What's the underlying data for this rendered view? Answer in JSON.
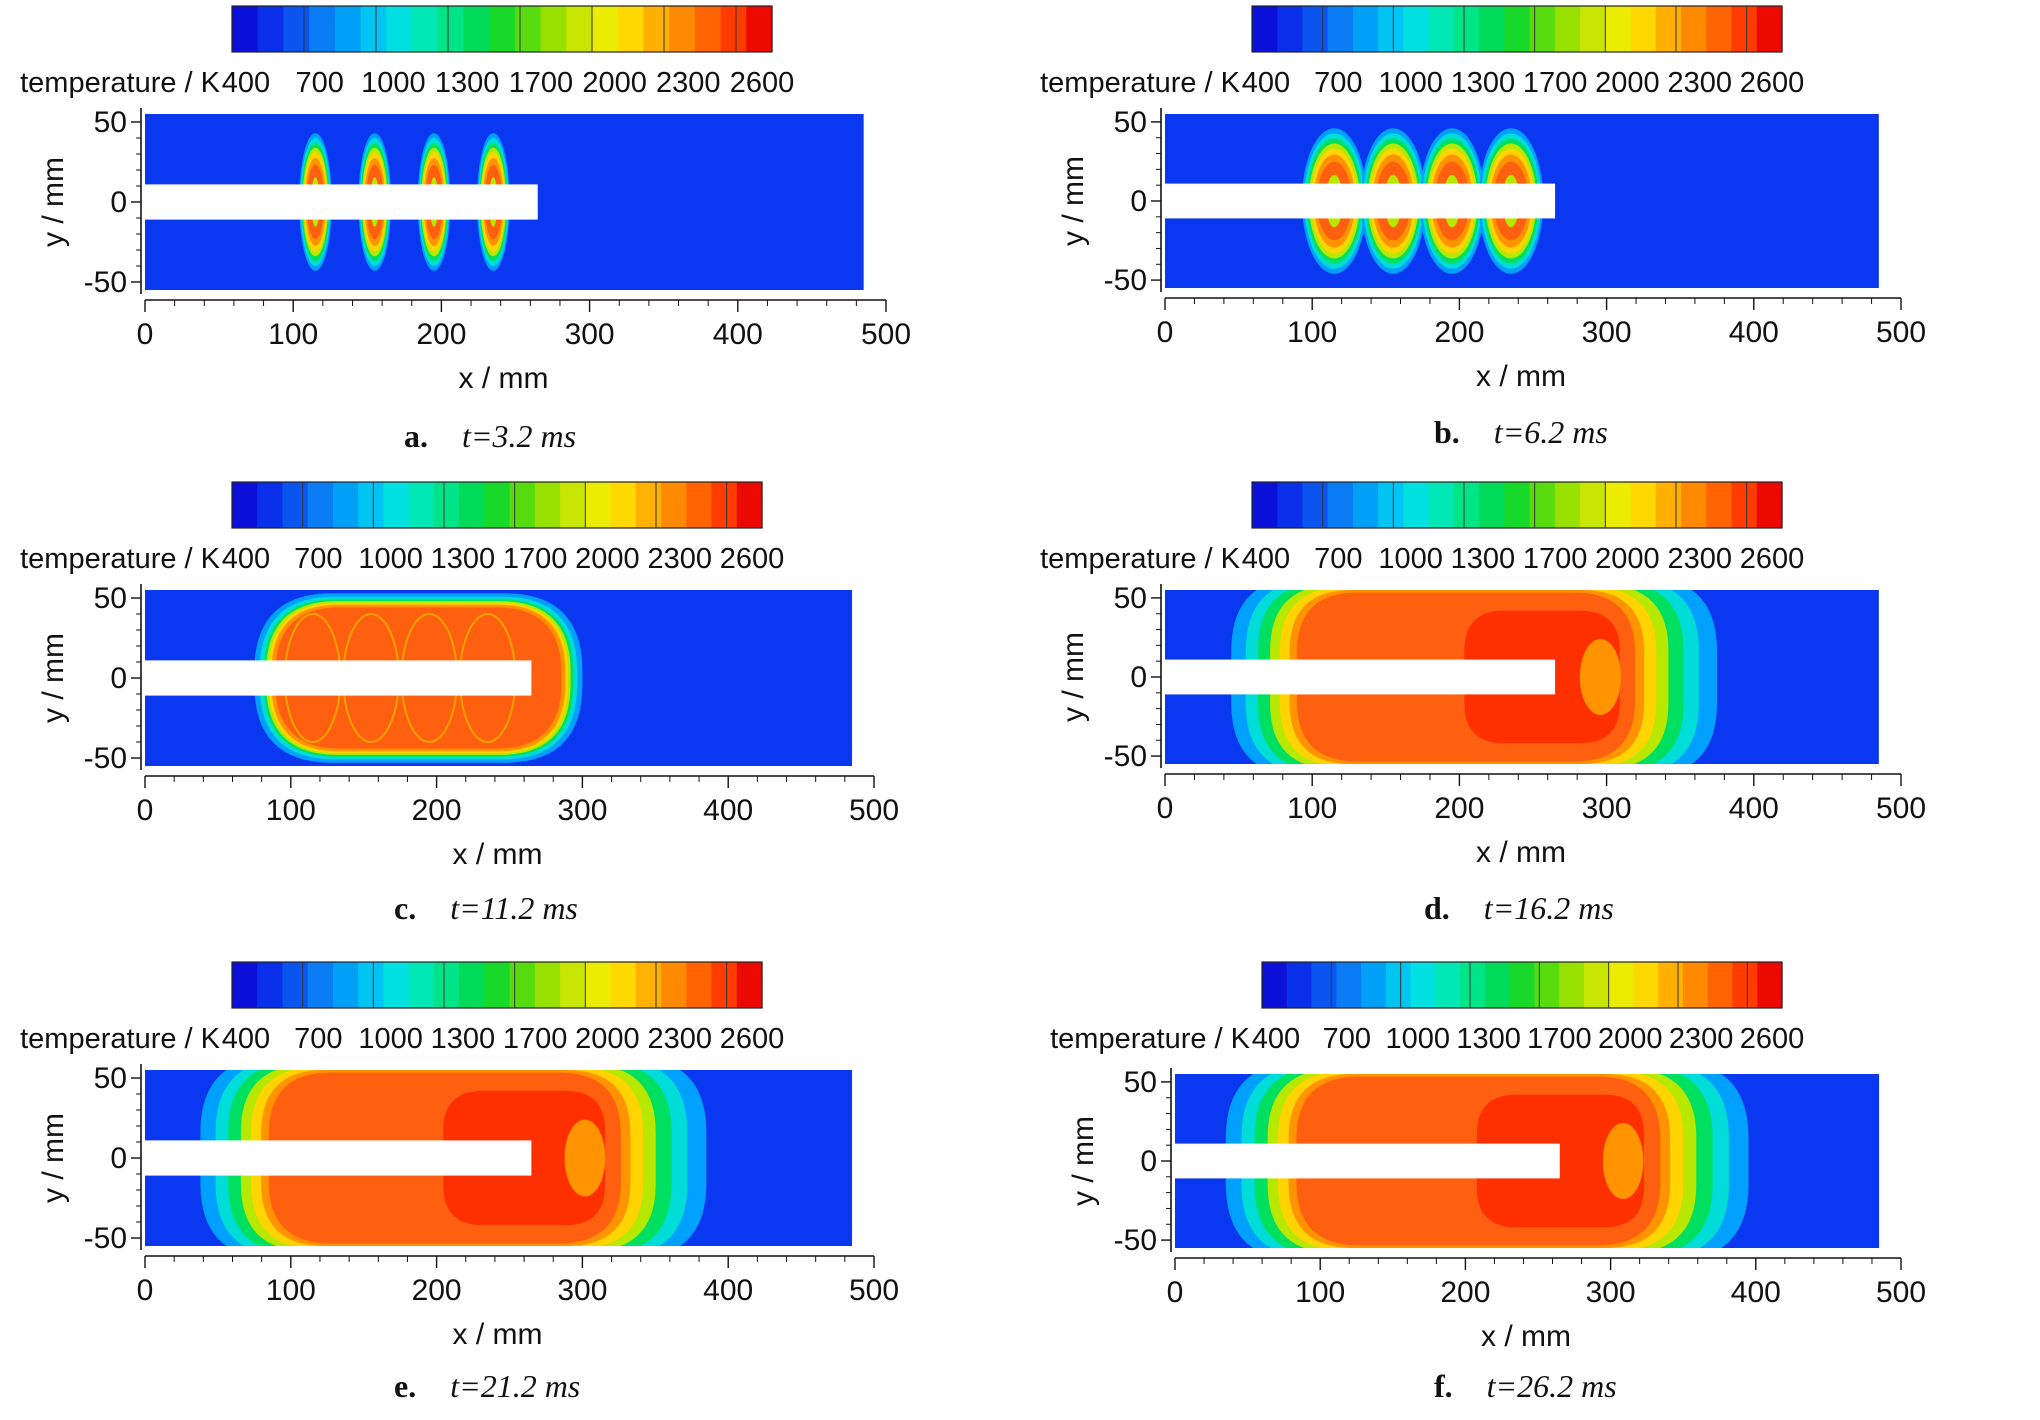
{
  "figure": {
    "colorbar": {
      "label": "temperature / K",
      "ticks": [
        "400",
        "700",
        "1000",
        "1300",
        "1700",
        "2000",
        "2300",
        "2600"
      ],
      "colors": [
        "#0a10d8",
        "#0a2fe8",
        "#0a55f0",
        "#0a7cf4",
        "#00a0f6",
        "#00c4f2",
        "#00e0e0",
        "#00e6b4",
        "#00e488",
        "#00dc5a",
        "#18d82a",
        "#58dc10",
        "#98e000",
        "#c8e600",
        "#ecec00",
        "#ffd800",
        "#ffb000",
        "#ff8a00",
        "#ff6400",
        "#ff3c00",
        "#ec0a00"
      ]
    },
    "field_colors": {
      "background": "#0a38f0",
      "ring": [
        "#00a0ff",
        "#00dcd8",
        "#00e060",
        "#b8e800",
        "#ffd400",
        "#ff9400"
      ],
      "core": "#ff6010",
      "hot": "#ff3000"
    }
  },
  "chart_data": [
    {
      "id": "a",
      "type": "heatmap",
      "caption_letter": "a.",
      "caption_time": "t=3.2 ms",
      "xlabel": "x / mm",
      "ylabel": "y / mm",
      "xlim": [
        0,
        500
      ],
      "ylim": [
        -55,
        55
      ],
      "xticks": [
        "0",
        "100",
        "200",
        "300",
        "400",
        "500"
      ],
      "yticks": [
        "50",
        "0",
        "-50"
      ],
      "colorbar_ticks": [
        "400",
        "700",
        "1000",
        "1300",
        "1700",
        "2000",
        "2300",
        "2600"
      ],
      "domain": {
        "x": [
          0,
          485
        ],
        "y": [
          -55,
          55
        ]
      },
      "tube": {
        "x": [
          0,
          265
        ],
        "y": [
          -11,
          11
        ]
      },
      "hot_region": {
        "style": "four-ellipses",
        "x_centers": [
          115,
          155,
          195,
          235
        ],
        "rx": 11,
        "ry": 43
      }
    },
    {
      "id": "b",
      "type": "heatmap",
      "caption_letter": "b.",
      "caption_time": "t=6.2 ms",
      "xlabel": "x / mm",
      "ylabel": "y / mm",
      "xlim": [
        0,
        500
      ],
      "ylim": [
        -55,
        55
      ],
      "xticks": [
        "0",
        "100",
        "200",
        "300",
        "400",
        "500"
      ],
      "yticks": [
        "50",
        "0",
        "-50"
      ],
      "colorbar_ticks": [
        "400",
        "700",
        "1000",
        "1300",
        "1700",
        "2000",
        "2300",
        "2600"
      ],
      "domain": {
        "x": [
          0,
          485
        ],
        "y": [
          -55,
          55
        ]
      },
      "tube": {
        "x": [
          0,
          265
        ],
        "y": [
          -11,
          11
        ]
      },
      "hot_region": {
        "style": "four-ellipses",
        "x_centers": [
          115,
          155,
          195,
          235
        ],
        "rx": 22,
        "ry": 46
      }
    },
    {
      "id": "c",
      "type": "heatmap",
      "caption_letter": "c.",
      "caption_time": "t=11.2 ms",
      "xlabel": "x / mm",
      "ylabel": "y / mm",
      "xlim": [
        0,
        500
      ],
      "ylim": [
        -55,
        55
      ],
      "xticks": [
        "0",
        "100",
        "200",
        "300",
        "400",
        "500"
      ],
      "yticks": [
        "50",
        "0",
        "-50"
      ],
      "colorbar_ticks": [
        "400",
        "700",
        "1000",
        "1300",
        "1700",
        "2000",
        "2300",
        "2600"
      ],
      "domain": {
        "x": [
          0,
          485
        ],
        "y": [
          -55,
          55
        ]
      },
      "tube": {
        "x": [
          0,
          265
        ],
        "y": [
          -11,
          11
        ]
      },
      "hot_region": {
        "style": "lobes",
        "x": [
          75,
          300
        ],
        "y": [
          -53,
          53
        ],
        "lobes": [
          115,
          155,
          195,
          235
        ]
      }
    },
    {
      "id": "d",
      "type": "heatmap",
      "caption_letter": "d.",
      "caption_time": "t=16.2 ms",
      "xlabel": "x / mm",
      "ylabel": "y / mm",
      "xlim": [
        0,
        500
      ],
      "ylim": [
        -55,
        55
      ],
      "xticks": [
        "0",
        "100",
        "200",
        "300",
        "400",
        "500"
      ],
      "yticks": [
        "50",
        "0",
        "-50"
      ],
      "colorbar_ticks": [
        "400",
        "700",
        "1000",
        "1300",
        "1700",
        "2000",
        "2300",
        "2600"
      ],
      "domain": {
        "x": [
          0,
          485
        ],
        "y": [
          -55,
          55
        ]
      },
      "tube": {
        "x": [
          0,
          265
        ],
        "y": [
          -11,
          11
        ]
      },
      "hot_region": {
        "style": "block",
        "x": [
          45,
          375
        ],
        "y": [
          -55,
          55
        ]
      }
    },
    {
      "id": "e",
      "type": "heatmap",
      "caption_letter": "e.",
      "caption_time": "t=21.2 ms",
      "xlabel": "x / mm",
      "ylabel": "y / mm",
      "xlim": [
        0,
        500
      ],
      "ylim": [
        -55,
        55
      ],
      "xticks": [
        "0",
        "100",
        "200",
        "300",
        "400",
        "500"
      ],
      "yticks": [
        "50",
        "0",
        "-50"
      ],
      "colorbar_ticks": [
        "400",
        "700",
        "1000",
        "1300",
        "1700",
        "2000",
        "2300",
        "2600"
      ],
      "domain": {
        "x": [
          0,
          485
        ],
        "y": [
          -55,
          55
        ]
      },
      "tube": {
        "x": [
          0,
          265
        ],
        "y": [
          -11,
          11
        ]
      },
      "hot_region": {
        "style": "block",
        "x": [
          38,
          385
        ],
        "y": [
          -55,
          55
        ]
      }
    },
    {
      "id": "f",
      "type": "heatmap",
      "caption_letter": "f.",
      "caption_time": "t=26.2 ms",
      "xlabel": "x / mm",
      "ylabel": "y / mm",
      "xlim": [
        0,
        500
      ],
      "ylim": [
        -55,
        55
      ],
      "xticks": [
        "0",
        "100",
        "200",
        "300",
        "400",
        "500"
      ],
      "yticks": [
        "50",
        "0",
        "-50"
      ],
      "colorbar_ticks": [
        "400",
        "700",
        "1000",
        "1300",
        "1700",
        "2000",
        "2300",
        "2600"
      ],
      "domain": {
        "x": [
          0,
          485
        ],
        "y": [
          -55,
          55
        ]
      },
      "tube": {
        "x": [
          0,
          265
        ],
        "y": [
          -11,
          11
        ]
      },
      "hot_region": {
        "style": "block",
        "x": [
          35,
          395
        ],
        "y": [
          -55,
          55
        ]
      }
    }
  ]
}
